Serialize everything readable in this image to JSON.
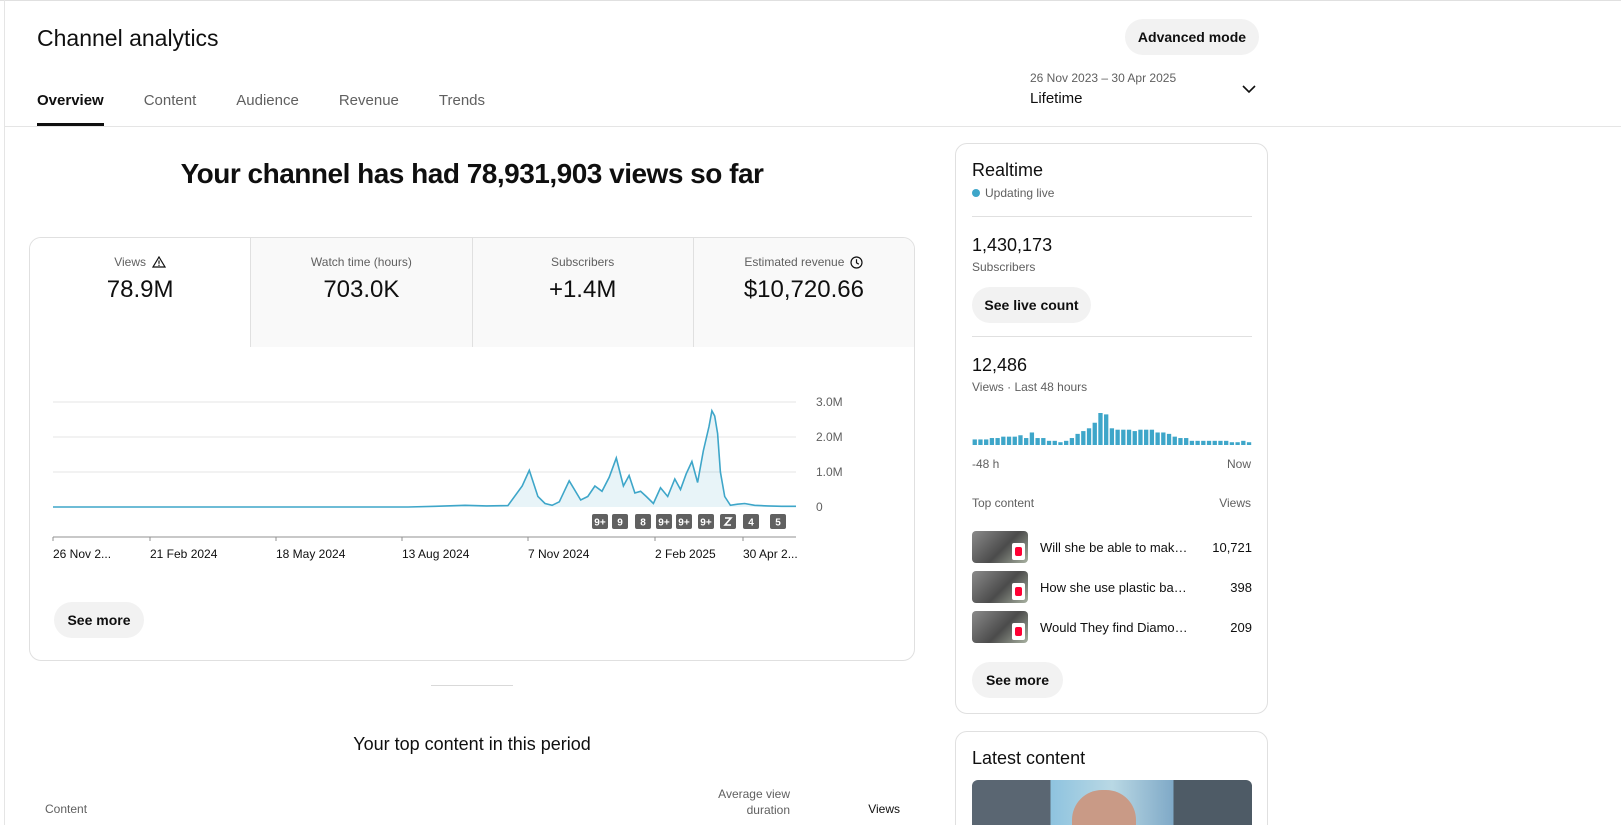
{
  "page": {
    "title": "Channel analytics",
    "advanced_mode": "Advanced mode"
  },
  "tabs": [
    "Overview",
    "Content",
    "Audience",
    "Revenue",
    "Trends"
  ],
  "date_range": {
    "dates": "26 Nov 2023 – 30 Apr 2025",
    "label": "Lifetime"
  },
  "headline": "Your channel has had 78,931,903 views so far",
  "metrics": [
    {
      "label": "Views",
      "value": "78.9M",
      "icon": "warning-icon"
    },
    {
      "label": "Watch time (hours)",
      "value": "703.0K"
    },
    {
      "label": "Subscribers",
      "value": "+1.4M"
    },
    {
      "label": "Estimated revenue",
      "value": "$10,720.66",
      "icon": "clock-icon"
    }
  ],
  "chart_data": {
    "type": "line",
    "title": "",
    "xlabel": "",
    "ylabel": "",
    "series": [
      {
        "color": "#3ea6c9",
        "x": [
          "2023-11-26",
          "2023-12-31",
          "2024-02-01",
          "2024-03-01",
          "2024-04-01",
          "2024-05-01",
          "2024-06-01",
          "2024-07-01",
          "2024-08-01",
          "2024-08-20",
          "2024-09-10",
          "2024-09-25",
          "2024-10-10",
          "2024-10-20",
          "2024-10-25",
          "2024-10-31",
          "2024-11-05",
          "2024-11-10",
          "2024-11-15",
          "2024-11-22",
          "2024-11-30",
          "2024-12-05",
          "2024-12-10",
          "2024-12-15",
          "2024-12-20",
          "2024-12-25",
          "2024-12-30",
          "2025-01-03",
          "2025-01-07",
          "2025-01-11",
          "2025-01-15",
          "2025-01-20",
          "2025-01-25",
          "2025-01-30",
          "2025-02-04",
          "2025-02-08",
          "2025-02-12",
          "2025-02-16",
          "2025-02-20",
          "2025-02-24",
          "2025-02-28",
          "2025-03-02",
          "2025-03-04",
          "2025-03-06",
          "2025-03-08",
          "2025-03-11",
          "2025-03-15",
          "2025-03-20",
          "2025-03-25",
          "2025-04-01",
          "2025-04-10",
          "2025-04-20",
          "2025-04-30"
        ],
        "y": [
          0,
          0,
          0,
          0,
          0,
          0,
          0,
          0,
          0,
          0.02,
          0.05,
          0.03,
          0.04,
          0.6,
          1.05,
          0.3,
          0.1,
          0.05,
          0.15,
          0.75,
          0.2,
          0.3,
          0.6,
          0.45,
          0.85,
          1.4,
          0.6,
          0.9,
          0.4,
          0.45,
          0.3,
          0.1,
          0.55,
          0.3,
          0.8,
          0.5,
          0.95,
          1.3,
          0.7,
          1.6,
          2.3,
          2.75,
          2.6,
          2.1,
          1.0,
          0.3,
          0.05,
          0.08,
          0.1,
          0.05,
          0.03,
          0.02,
          0.02
        ]
      }
    ],
    "x_ticks": [
      "26 Nov 2...",
      "21 Feb 2024",
      "18 May 2024",
      "13 Aug 2024",
      "7 Nov 2024",
      "2 Feb 2025",
      "30 Apr 2..."
    ],
    "y_ticks": [
      "3.0M",
      "2.0M",
      "1.0M",
      "0"
    ],
    "ylim": [
      0,
      3.0
    ],
    "grid": true,
    "markers": [
      "9+",
      "9",
      "8",
      "9+",
      "9+",
      "9+",
      "shorts-icon",
      "4",
      "5"
    ]
  },
  "overview_card": {
    "see_more": "See more"
  },
  "top_content_section": {
    "title": "Your top content in this period",
    "col_content": "Content",
    "col_avg": "Average view duration",
    "col_views": "Views"
  },
  "realtime": {
    "title": "Realtime",
    "live": "Updating live",
    "subscribers_value": "1,430,173",
    "subscribers_label": "Subscribers",
    "live_count_btn": "See live count",
    "views_value": "12,486",
    "views_label": "Views · Last 48 hours",
    "bars": [
      4,
      4,
      4,
      5,
      5,
      6,
      6,
      6,
      7,
      5,
      9,
      5,
      5,
      3,
      3,
      2,
      3,
      5,
      8,
      10,
      12,
      16,
      23,
      22,
      12,
      11,
      11,
      11,
      10,
      11,
      11,
      11,
      9,
      9,
      8,
      6,
      5,
      5,
      3,
      3,
      3,
      3,
      3,
      3,
      3,
      2,
      2,
      3,
      2
    ],
    "axis_start": "-48 h",
    "axis_end": "Now",
    "top_content_label": "Top content",
    "views_col": "Views",
    "items": [
      {
        "title": "Will she be able to make...",
        "views": "10,721"
      },
      {
        "title": "How she use plastic bag to...",
        "views": "398"
      },
      {
        "title": "Would They find Diamonds ...",
        "views": "209"
      }
    ],
    "see_more": "See more"
  },
  "latest_content": {
    "title": "Latest content"
  }
}
